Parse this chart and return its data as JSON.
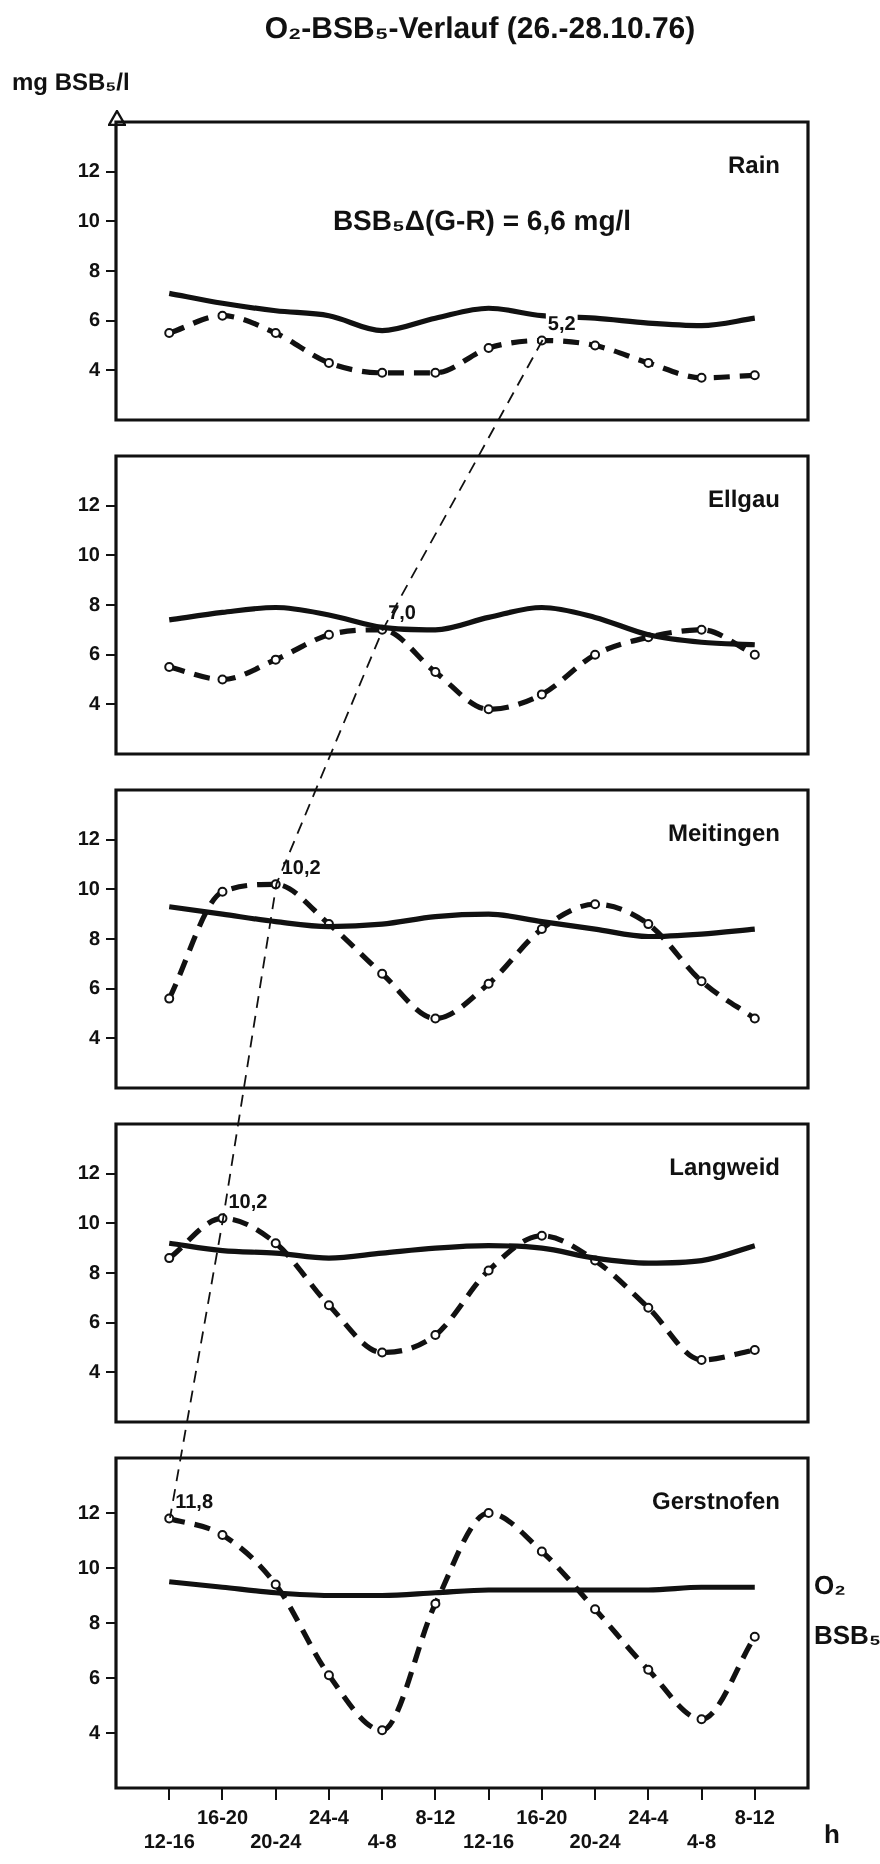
{
  "chart_data": [
    {
      "type": "line",
      "title": "O₂-BSB₅-Verlauf (26.-28.10.76)",
      "subtitle": "Rain",
      "ylabel": "mg BSB₅/l",
      "annotations": [
        "BSB₅Δ(G-R) = 6,6 mg/l"
      ],
      "tick_labels": "y",
      "categories": [
        null,
        null,
        null,
        null,
        null,
        null,
        null,
        null,
        null,
        null,
        null,
        null
      ],
      "ylim": [
        2,
        14
      ],
      "yticks": [
        4,
        6,
        8,
        10,
        12
      ],
      "series": [
        {
          "color": "#111111",
          "line_style": "solid",
          "marker": "none",
          "values": [
            7.1,
            6.7,
            6.4,
            6.2,
            5.6,
            6.1,
            6.5,
            6.2,
            6.1,
            5.9,
            5.8,
            6.1
          ]
        },
        {
          "color": "#111111",
          "line_style": "dashed",
          "marker": "circle",
          "values": [
            5.5,
            6.2,
            5.5,
            4.3,
            3.9,
            3.9,
            4.9,
            5.2,
            5.0,
            4.3,
            3.7,
            3.8
          ],
          "value_labels": [
            null,
            null,
            null,
            null,
            null,
            null,
            null,
            "5,2",
            null,
            null,
            null,
            null
          ]
        }
      ]
    },
    {
      "type": "line",
      "subtitle": "Ellgau",
      "tick_labels": "y",
      "categories": [
        null,
        null,
        null,
        null,
        null,
        null,
        null,
        null,
        null,
        null,
        null,
        null
      ],
      "ylim": [
        2,
        14
      ],
      "yticks": [
        4,
        6,
        8,
        10,
        12
      ],
      "series": [
        {
          "color": "#111111",
          "line_style": "solid",
          "marker": "none",
          "values": [
            7.4,
            7.7,
            7.9,
            7.6,
            7.1,
            7.0,
            7.5,
            7.9,
            7.5,
            6.8,
            6.5,
            6.4
          ]
        },
        {
          "color": "#111111",
          "line_style": "dashed",
          "marker": "circle",
          "values": [
            5.5,
            5.0,
            5.8,
            6.8,
            7.0,
            5.3,
            3.8,
            4.4,
            6.0,
            6.7,
            7.0,
            6.0
          ],
          "value_labels": [
            null,
            null,
            null,
            null,
            "7,0",
            null,
            null,
            null,
            null,
            null,
            null,
            null
          ]
        }
      ]
    },
    {
      "type": "line",
      "subtitle": "Meitingen",
      "tick_labels": "y",
      "categories": [
        null,
        null,
        null,
        null,
        null,
        null,
        null,
        null,
        null,
        null,
        null,
        null
      ],
      "ylim": [
        2,
        14
      ],
      "yticks": [
        4,
        6,
        8,
        10,
        12
      ],
      "series": [
        {
          "color": "#111111",
          "line_style": "solid",
          "marker": "none",
          "values": [
            9.3,
            9.0,
            8.7,
            8.5,
            8.6,
            8.9,
            9.0,
            8.7,
            8.4,
            8.1,
            8.2,
            8.4
          ]
        },
        {
          "color": "#111111",
          "line_style": "dashed",
          "marker": "circle",
          "values": [
            5.6,
            9.9,
            10.2,
            8.6,
            6.6,
            4.8,
            6.2,
            8.4,
            9.4,
            8.6,
            6.3,
            4.8
          ],
          "value_labels": [
            null,
            null,
            "10,2",
            null,
            null,
            null,
            null,
            null,
            null,
            null,
            null,
            null
          ]
        }
      ]
    },
    {
      "type": "line",
      "subtitle": "Langweid",
      "tick_labels": "y",
      "categories": [
        null,
        null,
        null,
        null,
        null,
        null,
        null,
        null,
        null,
        null,
        null,
        null
      ],
      "ylim": [
        2,
        14
      ],
      "yticks": [
        4,
        6,
        8,
        10,
        12
      ],
      "series": [
        {
          "color": "#111111",
          "line_style": "solid",
          "marker": "none",
          "values": [
            9.2,
            8.9,
            8.8,
            8.6,
            8.8,
            9.0,
            9.1,
            9.0,
            8.6,
            8.4,
            8.5,
            9.1
          ]
        },
        {
          "color": "#111111",
          "line_style": "dashed",
          "marker": "circle",
          "values": [
            8.6,
            10.2,
            9.2,
            6.7,
            4.8,
            5.5,
            8.1,
            9.5,
            8.5,
            6.6,
            4.5,
            4.9
          ],
          "value_labels": [
            null,
            "10,2",
            null,
            null,
            null,
            null,
            null,
            null,
            null,
            null,
            null,
            null
          ]
        }
      ]
    },
    {
      "type": "line",
      "subtitle": "Gerstnofen",
      "xlabel": "h",
      "categories": [
        "12-16",
        "16-20",
        "20-24",
        "24-4",
        "4-8",
        "8-12",
        "12-16",
        "16-20",
        "20-24",
        "24-4",
        "4-8",
        "8-12"
      ],
      "ylim": [
        2,
        14
      ],
      "yticks": [
        4,
        6,
        8,
        10,
        12
      ],
      "series": [
        {
          "name": "O₂",
          "color": "#111111",
          "line_style": "solid",
          "marker": "none",
          "values": [
            9.5,
            9.3,
            9.1,
            9.0,
            9.0,
            9.1,
            9.2,
            9.2,
            9.2,
            9.2,
            9.3,
            9.3
          ]
        },
        {
          "name": "BSB₅",
          "color": "#111111",
          "line_style": "dashed",
          "marker": "circle",
          "values": [
            11.8,
            11.2,
            9.4,
            6.1,
            4.1,
            8.7,
            12.0,
            10.6,
            8.5,
            6.3,
            4.5,
            7.5
          ],
          "value_labels": [
            "11,8",
            null,
            null,
            null,
            null,
            null,
            null,
            null,
            null,
            null,
            null,
            null
          ]
        }
      ]
    }
  ]
}
